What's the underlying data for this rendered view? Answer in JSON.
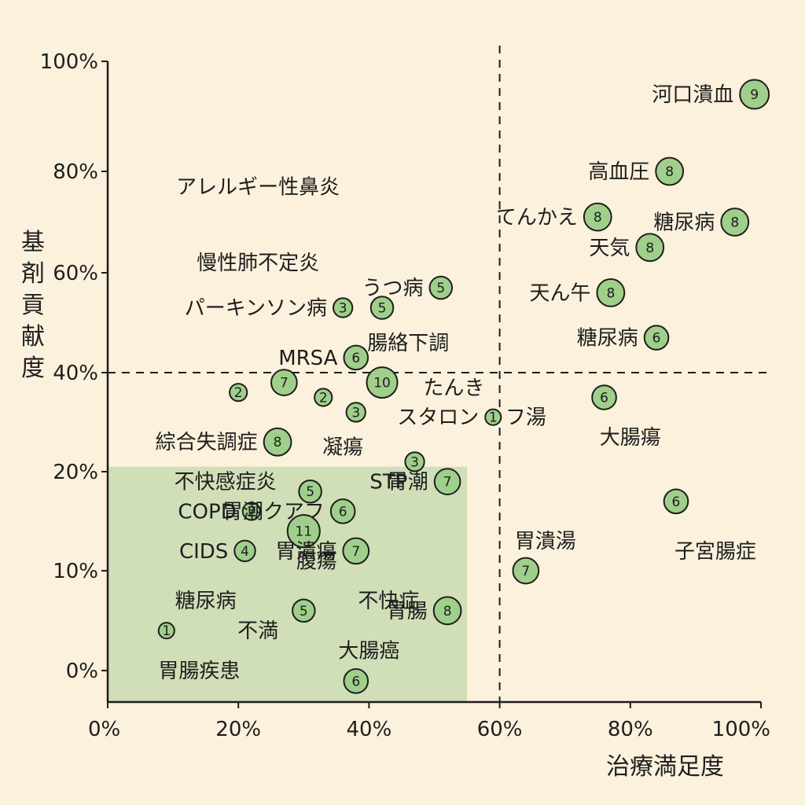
{
  "colors": {
    "background": "#fbf1dc",
    "highlight_region": "#c8dcb1",
    "point_fill": "#9fcf8a",
    "point_stroke": "#1e1e1e",
    "axis": "#1e1e1e"
  },
  "chart_data": {
    "type": "scatter",
    "title": "",
    "xlabel": "治療満足度",
    "ylabel": "基剤貢献度",
    "xlim": [
      0,
      100
    ],
    "ylim": [
      -3,
      104
    ],
    "grid": false,
    "x_ticks": [
      {
        "value": 0,
        "label": "0%"
      },
      {
        "value": 20,
        "label": "20%"
      },
      {
        "value": 40,
        "label": "40%"
      },
      {
        "value": 60,
        "label": "60%"
      },
      {
        "value": 80,
        "label": "80%"
      },
      {
        "value": 100,
        "label": "100%"
      }
    ],
    "y_ticks": [
      {
        "value": 0,
        "label": "0%"
      },
      {
        "value": 10,
        "label": "10%"
      },
      {
        "value": 20,
        "label": "20%"
      },
      {
        "value": 40,
        "label": "40%"
      },
      {
        "value": 60,
        "label": "60%"
      },
      {
        "value": 80,
        "label": "80%"
      },
      {
        "value": 100,
        "label": "100%"
      }
    ],
    "reference_lines": {
      "x": 60,
      "y": 40
    },
    "highlight_region": {
      "x": [
        0,
        55
      ],
      "y": [
        -3,
        21
      ]
    },
    "points": [
      {
        "label": "河口潰血",
        "value": 9,
        "x": 99,
        "y": 94
      },
      {
        "label": "高血圧",
        "value": 8,
        "x": 86,
        "y": 80
      },
      {
        "label": "糖尿病",
        "value": 8,
        "x": 96,
        "y": 70
      },
      {
        "label": "てんかえ",
        "value": 8,
        "x": 75,
        "y": 71
      },
      {
        "label": "天気",
        "value": 8,
        "x": 83,
        "y": 65
      },
      {
        "label": "天ん午",
        "value": 8,
        "x": 77,
        "y": 56
      },
      {
        "label": "糖尿病",
        "value": 6,
        "x": 84,
        "y": 47
      },
      {
        "label": "うつ病",
        "value": 5,
        "x": 51,
        "y": 57
      },
      {
        "label": "パーキンソン病",
        "value": 3,
        "x": 36,
        "y": 53
      },
      {
        "label": "",
        "value": 5,
        "x": 42,
        "y": 53
      },
      {
        "label": "MRSA",
        "value": 6,
        "x": 38,
        "y": 43
      },
      {
        "label": "",
        "value": 7,
        "x": 27,
        "y": 38
      },
      {
        "label": "",
        "value": 2,
        "x": 20,
        "y": 36
      },
      {
        "label": "",
        "value": 10,
        "x": 42,
        "y": 38
      },
      {
        "label": "",
        "value": 2,
        "x": 33,
        "y": 35
      },
      {
        "label": "",
        "value": 3,
        "x": 38,
        "y": 32
      },
      {
        "label": "スタロン",
        "value": 1,
        "x": 59,
        "y": 31
      },
      {
        "label": "",
        "value": 6,
        "x": 76,
        "y": 35
      },
      {
        "label": "綜合失調症",
        "value": 8,
        "x": 26,
        "y": 26
      },
      {
        "label": "",
        "value": 3,
        "x": 47,
        "y": 22
      },
      {
        "label": "胃潮",
        "value": 7,
        "x": 52,
        "y": 19
      },
      {
        "label": "",
        "value": 5,
        "x": 31,
        "y": 18
      },
      {
        "label": "COPD",
        "value": 2,
        "x": 22,
        "y": 16
      },
      {
        "label": "胃潮クアフ",
        "value": 6,
        "x": 36,
        "y": 16
      },
      {
        "label": "",
        "value": 11,
        "x": 30,
        "y": 14
      },
      {
        "label": "CIDS",
        "value": 4,
        "x": 21,
        "y": 12
      },
      {
        "label": "胃潰瘍",
        "value": 7,
        "x": 38,
        "y": 12
      },
      {
        "label": "",
        "value": 6,
        "x": 87,
        "y": 17
      },
      {
        "label": "",
        "value": 7,
        "x": 64,
        "y": 10
      },
      {
        "label": "",
        "value": 1,
        "x": 9,
        "y": 4
      },
      {
        "label": "",
        "value": 5,
        "x": 30,
        "y": 6
      },
      {
        "label": "胃腸",
        "value": 8,
        "x": 52,
        "y": 6
      },
      {
        "label": "",
        "value": 6,
        "x": 38,
        "y": -1
      }
    ],
    "free_labels": [
      {
        "text": "アレルギー性鼻炎",
        "x": 23,
        "y": 77
      },
      {
        "text": "慢性肺不定炎",
        "x": 23,
        "y": 62
      },
      {
        "text": "腸絡下調",
        "x": 46,
        "y": 46
      },
      {
        "text": "たんき",
        "x": 53,
        "y": 37
      },
      {
        "text": "フ湯",
        "x": 64,
        "y": 31
      },
      {
        "text": "凝瘍",
        "x": 36,
        "y": 25
      },
      {
        "text": "STP",
        "x": 43,
        "y": 19
      },
      {
        "text": "不快感症炎",
        "x": 18,
        "y": 19
      },
      {
        "text": "大腸瘍",
        "x": 80,
        "y": 27
      },
      {
        "text": "子宮腸症",
        "x": 93,
        "y": 12
      },
      {
        "text": "胃潰湯",
        "x": 67,
        "y": 13
      },
      {
        "text": "腹瘍",
        "x": 32,
        "y": 11
      },
      {
        "text": "糖尿病",
        "x": 15,
        "y": 7
      },
      {
        "text": "不快症",
        "x": 43,
        "y": 7
      },
      {
        "text": "不満",
        "x": 23,
        "y": 4
      },
      {
        "text": "大腸癌",
        "x": 40,
        "y": 2
      },
      {
        "text": "胃腸疾患",
        "x": 14,
        "y": 0
      }
    ]
  }
}
